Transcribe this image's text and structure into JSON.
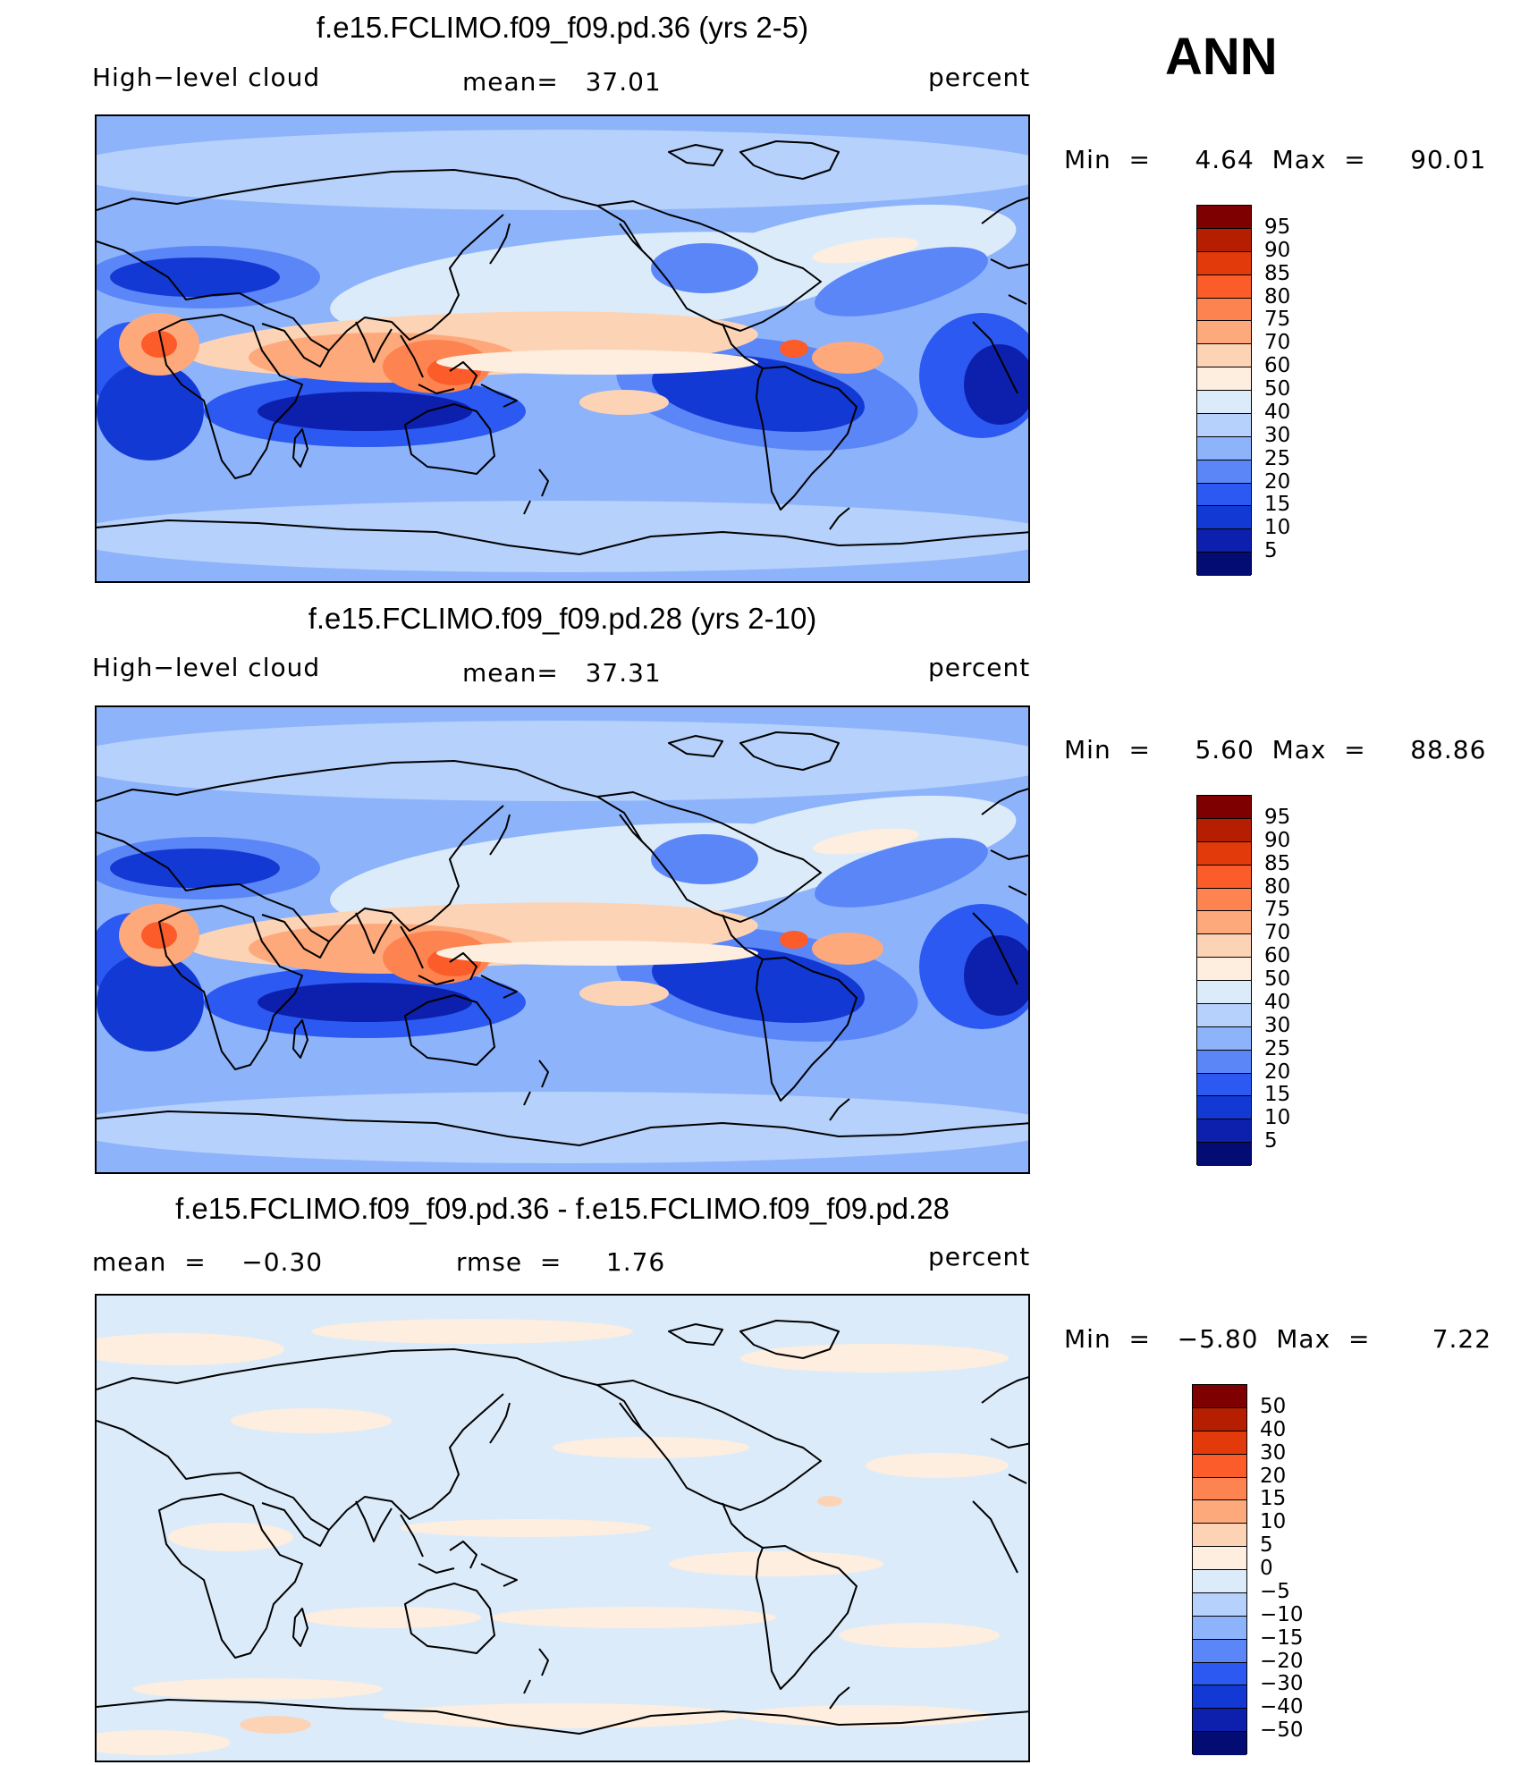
{
  "season": "ANN",
  "panels": [
    {
      "title": "f.e15.FCLIMO.f09_f09.pd.36 (yrs 2-5)",
      "variable": "High−level cloud",
      "stat_text": "mean=   37.01",
      "units": "percent",
      "min_max_text": "Min  =     4.64  Max  =     90.01",
      "colorbar_labels": [
        "95",
        "90",
        "85",
        "80",
        "75",
        "70",
        "60",
        "50",
        "40",
        "30",
        "25",
        "20",
        "15",
        "10",
        "5"
      ],
      "colors": [
        "#7f0000",
        "#b51e00",
        "#e23a0b",
        "#fc5b2a",
        "#fd8450",
        "#fda97c",
        "#fdd3b6",
        "#fdeedf",
        "#dcebfa",
        "#b6d1fb",
        "#8db3fb",
        "#5b86f7",
        "#2b59f1",
        "#1339d5",
        "#0c20ad",
        "#030c72"
      ]
    },
    {
      "title": "f.e15.FCLIMO.f09_f09.pd.28 (yrs 2-10)",
      "variable": "High−level cloud",
      "stat_text": "mean=   37.31",
      "units": "percent",
      "min_max_text": "Min  =     5.60  Max  =     88.86",
      "colorbar_labels": [
        "95",
        "90",
        "85",
        "80",
        "75",
        "70",
        "60",
        "50",
        "40",
        "30",
        "25",
        "20",
        "15",
        "10",
        "5"
      ],
      "colors": [
        "#7f0000",
        "#b51e00",
        "#e23a0b",
        "#fc5b2a",
        "#fd8450",
        "#fda97c",
        "#fdd3b6",
        "#fdeedf",
        "#dcebfa",
        "#b6d1fb",
        "#8db3fb",
        "#5b86f7",
        "#2b59f1",
        "#1339d5",
        "#0c20ad",
        "#030c72"
      ]
    },
    {
      "title": "f.e15.FCLIMO.f09_f09.pd.36 - f.e15.FCLIMO.f09_f09.pd.28",
      "mean_text": "mean  =    −0.30",
      "rmse_text": "rmse  =     1.76",
      "units": "percent",
      "min_max_text": "Min  =   −5.80  Max  =       7.22",
      "colorbar_labels": [
        "50",
        "40",
        "30",
        "20",
        "15",
        "10",
        "5",
        "0",
        "−5",
        "−10",
        "−15",
        "−20",
        "−30",
        "−40",
        "−50"
      ],
      "colors": [
        "#7f0000",
        "#b51e00",
        "#e23a0b",
        "#fc5b2a",
        "#fd8450",
        "#fda97c",
        "#fdd3b6",
        "#fdeedf",
        "#dcebfa",
        "#b6d1fb",
        "#8db3fb",
        "#5b86f7",
        "#2b59f1",
        "#1339d5",
        "#0c20ad",
        "#030c72"
      ]
    }
  ]
}
